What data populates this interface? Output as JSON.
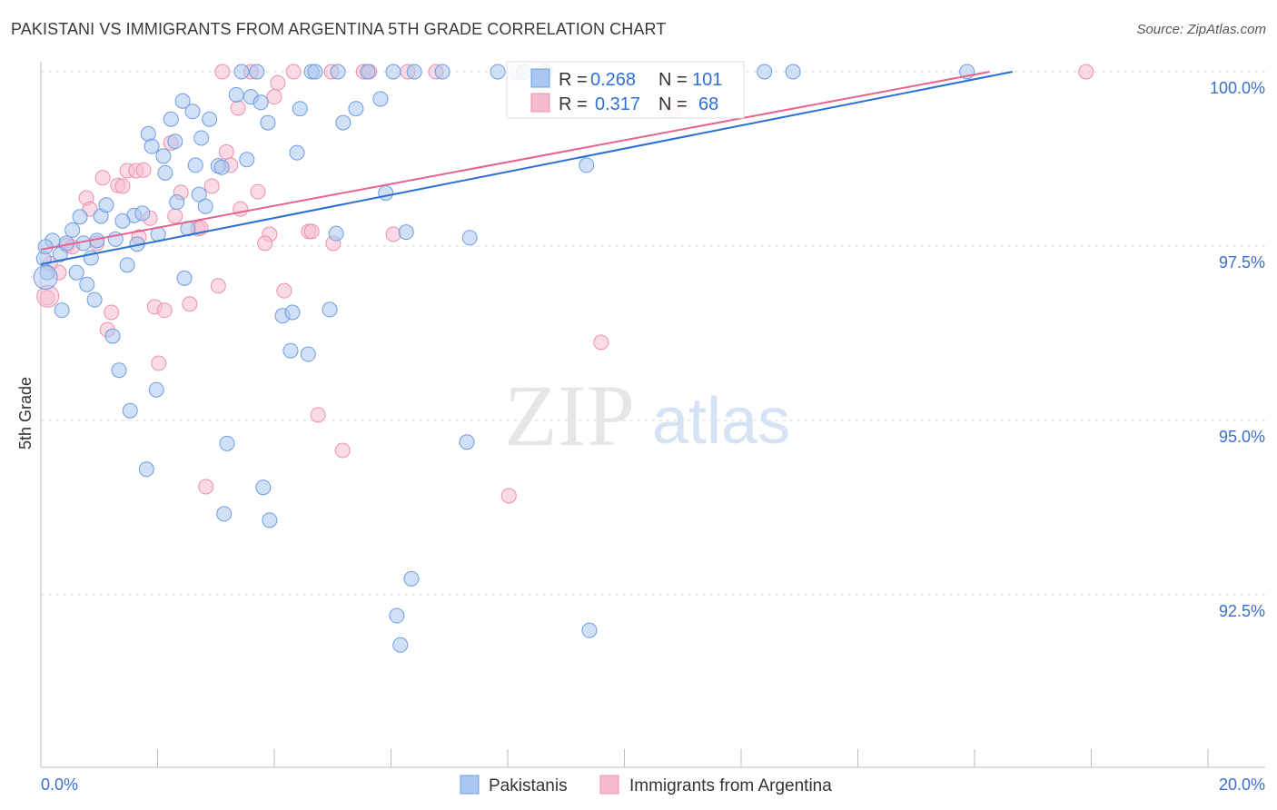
{
  "title": "PAKISTANI VS IMMIGRANTS FROM ARGENTINA 5TH GRADE CORRELATION CHART",
  "source": "Source: ZipAtlas.com",
  "watermark": {
    "zip": "ZIP",
    "atlas": "atlas"
  },
  "colors": {
    "blue_fill": "#a9c7f0",
    "blue_stroke": "#6e9ce0",
    "blue_line": "#2a6fd6",
    "pink_fill": "#f6bccd",
    "pink_stroke": "#eb90ad",
    "pink_line": "#e8628e",
    "tick_text": "#3a6fd0"
  },
  "chart_data": {
    "type": "scatter",
    "title": "PAKISTANI VS IMMIGRANTS FROM ARGENTINA 5TH GRADE CORRELATION CHART",
    "xlabel": "",
    "ylabel": "5th Grade",
    "xlim": [
      0,
      21
    ],
    "ylim": [
      90,
      100.3
    ],
    "x_tick_labels": [
      "0.0%",
      "20.0%"
    ],
    "y_ticks": [
      100,
      97.5,
      95,
      92.5
    ],
    "y_tick_labels": [
      "100.0%",
      "97.5%",
      "95.0%",
      "92.5%"
    ],
    "grid": true,
    "legend": {
      "placement": "top-center",
      "entries": [
        {
          "r_label": "R =",
          "r": "0.268",
          "n_label": "N =",
          "n": "101"
        },
        {
          "r_label": "R =",
          "r": "0.317",
          "n_label": "N =",
          "n": "68"
        }
      ]
    },
    "bottom_legend": [
      "Pakistanis",
      "Immigrants from Argentina"
    ],
    "series": [
      {
        "name": "Pakistanis",
        "trend": {
          "x": [
            0,
            16.65
          ],
          "y": [
            97.24,
            100
          ]
        },
        "points": [
          [
            3.44,
            100
          ],
          [
            3.7,
            100
          ],
          [
            4.64,
            100
          ],
          [
            4.7,
            100
          ],
          [
            5.09,
            100
          ],
          [
            5.6,
            100
          ],
          [
            6.04,
            100
          ],
          [
            6.4,
            100
          ],
          [
            6.88,
            100
          ],
          [
            7.83,
            100
          ],
          [
            8.28,
            100
          ],
          [
            8.64,
            100
          ],
          [
            12.4,
            100
          ],
          [
            12.89,
            100
          ],
          [
            15.87,
            100
          ],
          [
            2.43,
            99.58
          ],
          [
            2.6,
            99.43
          ],
          [
            2.89,
            99.32
          ],
          [
            3.35,
            99.67
          ],
          [
            3.6,
            99.64
          ],
          [
            3.77,
            99.56
          ],
          [
            3.89,
            99.27
          ],
          [
            4.44,
            99.47
          ],
          [
            5.18,
            99.27
          ],
          [
            5.4,
            99.47
          ],
          [
            5.82,
            99.61
          ],
          [
            1.84,
            99.11
          ],
          [
            2.23,
            99.32
          ],
          [
            1.9,
            98.93
          ],
          [
            2.3,
            99.0
          ],
          [
            2.1,
            98.79
          ],
          [
            2.75,
            99.05
          ],
          [
            2.13,
            98.55
          ],
          [
            2.65,
            98.66
          ],
          [
            3.04,
            98.65
          ],
          [
            3.53,
            98.74
          ],
          [
            4.39,
            98.84
          ],
          [
            3.1,
            98.63
          ],
          [
            2.71,
            98.24
          ],
          [
            2.33,
            98.13
          ],
          [
            2.82,
            98.07
          ],
          [
            5.91,
            98.26
          ],
          [
            9.35,
            98.66
          ],
          [
            0.67,
            97.92
          ],
          [
            0.54,
            97.73
          ],
          [
            1.03,
            97.93
          ],
          [
            1.12,
            98.09
          ],
          [
            1.6,
            97.94
          ],
          [
            1.74,
            97.97
          ],
          [
            1.4,
            97.86
          ],
          [
            2.01,
            97.67
          ],
          [
            2.52,
            97.75
          ],
          [
            5.06,
            97.68
          ],
          [
            6.26,
            97.7
          ],
          [
            7.35,
            97.62
          ],
          [
            0.2,
            97.58
          ],
          [
            0.33,
            97.38
          ],
          [
            0.44,
            97.54
          ],
          [
            0.73,
            97.54
          ],
          [
            0.86,
            97.33
          ],
          [
            1.28,
            97.6
          ],
          [
            1.65,
            97.53
          ],
          [
            0.96,
            97.58
          ],
          [
            1.48,
            97.23
          ],
          [
            0.61,
            97.12
          ],
          [
            0.79,
            96.95
          ],
          [
            0.92,
            96.73
          ],
          [
            0.36,
            96.58
          ],
          [
            2.46,
            97.04
          ],
          [
            4.14,
            96.5
          ],
          [
            4.31,
            96.55
          ],
          [
            4.95,
            96.59
          ],
          [
            1.23,
            96.21
          ],
          [
            4.28,
            96.0
          ],
          [
            4.58,
            95.95
          ],
          [
            1.34,
            95.72
          ],
          [
            1.98,
            95.44
          ],
          [
            1.53,
            95.14
          ],
          [
            3.19,
            94.67
          ],
          [
            7.3,
            94.69
          ],
          [
            1.81,
            94.3
          ],
          [
            3.81,
            94.04
          ],
          [
            3.14,
            93.66
          ],
          [
            3.92,
            93.57
          ],
          [
            6.35,
            92.73
          ],
          [
            6.1,
            92.2
          ],
          [
            6.16,
            91.78
          ],
          [
            9.4,
            91.99
          ],
          [
            0.05,
            97.32
          ],
          [
            0.11,
            97.12
          ],
          [
            0.08,
            97.49
          ]
        ]
      },
      {
        "name": "Immigrants from Argentina",
        "trend": {
          "x": [
            0,
            16.26
          ],
          "y": [
            97.45,
            100
          ]
        },
        "points": [
          [
            3.11,
            100
          ],
          [
            3.6,
            100
          ],
          [
            4.33,
            100
          ],
          [
            4.98,
            100
          ],
          [
            5.53,
            100
          ],
          [
            5.63,
            100
          ],
          [
            6.29,
            100
          ],
          [
            6.77,
            100
          ],
          [
            8.17,
            100
          ],
          [
            17.91,
            100
          ],
          [
            4.06,
            99.84
          ],
          [
            4.0,
            99.64
          ],
          [
            3.38,
            99.48
          ],
          [
            2.23,
            98.98
          ],
          [
            3.18,
            98.85
          ],
          [
            3.25,
            98.66
          ],
          [
            1.06,
            98.48
          ],
          [
            1.48,
            98.58
          ],
          [
            1.63,
            98.58
          ],
          [
            1.76,
            98.59
          ],
          [
            1.32,
            98.37
          ],
          [
            1.4,
            98.36
          ],
          [
            0.78,
            98.19
          ],
          [
            2.93,
            98.36
          ],
          [
            3.72,
            98.28
          ],
          [
            2.4,
            98.27
          ],
          [
            3.42,
            98.03
          ],
          [
            0.84,
            98.03
          ],
          [
            1.87,
            97.9
          ],
          [
            2.3,
            97.93
          ],
          [
            2.69,
            97.75
          ],
          [
            2.74,
            97.76
          ],
          [
            3.92,
            97.67
          ],
          [
            4.59,
            97.71
          ],
          [
            4.64,
            97.71
          ],
          [
            6.04,
            97.67
          ],
          [
            5.01,
            97.54
          ],
          [
            3.84,
            97.54
          ],
          [
            1.68,
            97.63
          ],
          [
            0.45,
            97.51
          ],
          [
            0.54,
            97.49
          ],
          [
            0.96,
            97.54
          ],
          [
            0.31,
            97.12
          ],
          [
            0.16,
            97.25
          ],
          [
            0.11,
            96.76
          ],
          [
            3.04,
            96.93
          ],
          [
            4.17,
            96.86
          ],
          [
            1.95,
            96.63
          ],
          [
            2.12,
            96.58
          ],
          [
            2.55,
            96.67
          ],
          [
            1.21,
            96.55
          ],
          [
            1.14,
            96.3
          ],
          [
            2.02,
            95.82
          ],
          [
            4.75,
            95.08
          ],
          [
            5.17,
            94.57
          ],
          [
            2.83,
            94.05
          ],
          [
            8.02,
            93.92
          ],
          [
            9.6,
            96.12
          ],
          [
            10.82,
            99.44
          ]
        ]
      }
    ]
  }
}
